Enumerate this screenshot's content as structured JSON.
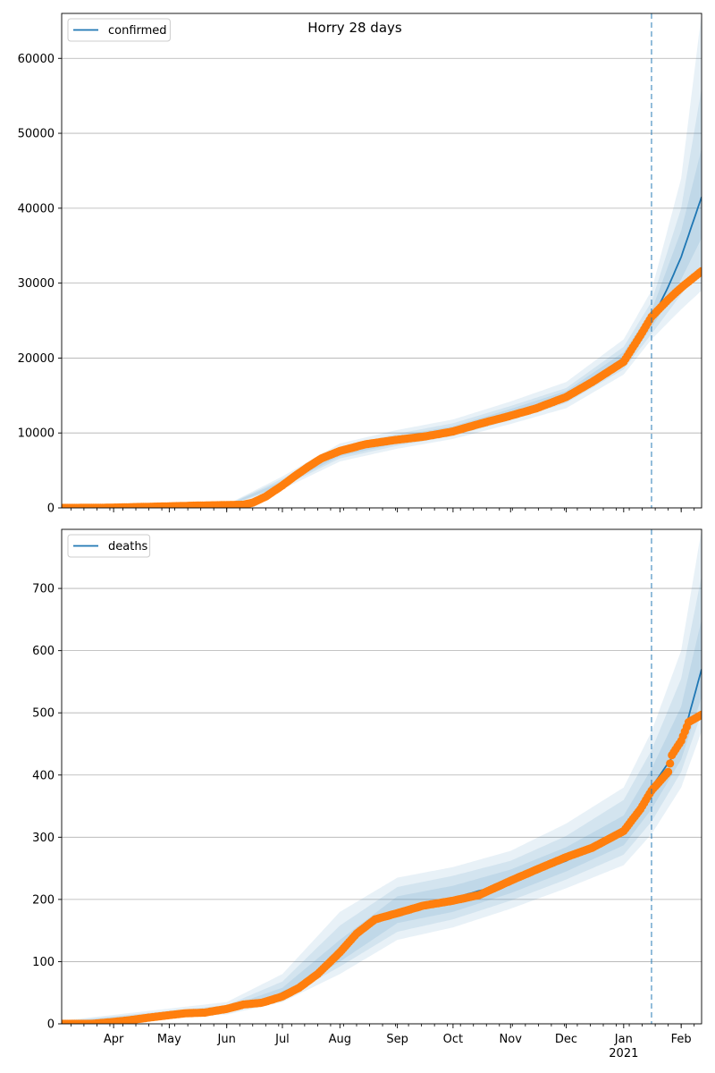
{
  "figure": {
    "title": "Horry 28 days"
  },
  "chart_data": [
    {
      "type": "line",
      "title": "Horry 28 days",
      "legend": {
        "position": "top-left",
        "entries": [
          "confirmed"
        ]
      },
      "series_name": "confirmed",
      "grid": "y",
      "ylim": [
        0,
        66000
      ],
      "yticks": [
        0,
        10000,
        20000,
        30000,
        40000,
        50000,
        60000
      ],
      "xlim": [
        "2020-03-04",
        "2021-02-12"
      ],
      "vline_date": "2021-01-16",
      "colors": {
        "model": "#1f77b4",
        "observed": "#ff7f0e",
        "band": "#1f77b4",
        "grid": "#b0b0b0"
      },
      "observed": [
        [
          "2020-03-04",
          0
        ],
        [
          "2020-03-20",
          10
        ],
        [
          "2020-04-01",
          40
        ],
        [
          "2020-04-15",
          120
        ],
        [
          "2020-05-01",
          210
        ],
        [
          "2020-05-15",
          300
        ],
        [
          "2020-06-01",
          380
        ],
        [
          "2020-06-10",
          420
        ],
        [
          "2020-06-15",
          700
        ],
        [
          "2020-06-22",
          1500
        ],
        [
          "2020-07-01",
          3000
        ],
        [
          "2020-07-08",
          4300
        ],
        [
          "2020-07-15",
          5500
        ],
        [
          "2020-07-22",
          6600
        ],
        [
          "2020-08-01",
          7600
        ],
        [
          "2020-08-15",
          8500
        ],
        [
          "2020-09-01",
          9100
        ],
        [
          "2020-09-15",
          9500
        ],
        [
          "2020-10-01",
          10200
        ],
        [
          "2020-10-15",
          11200
        ],
        [
          "2020-11-01",
          12300
        ],
        [
          "2020-11-15",
          13300
        ],
        [
          "2020-12-01",
          14800
        ],
        [
          "2020-12-15",
          16800
        ],
        [
          "2021-01-01",
          19500
        ],
        [
          "2021-01-10",
          23000
        ],
        [
          "2021-01-16",
          25500
        ],
        [
          "2021-01-25",
          27800
        ],
        [
          "2021-02-01",
          29400
        ],
        [
          "2021-02-12",
          31600
        ]
      ],
      "model": [
        [
          "2020-03-04",
          0
        ],
        [
          "2020-05-01",
          150
        ],
        [
          "2020-06-01",
          300
        ],
        [
          "2020-06-15",
          900
        ],
        [
          "2020-07-01",
          3300
        ],
        [
          "2020-07-15",
          5400
        ],
        [
          "2020-08-01",
          7300
        ],
        [
          "2020-08-15",
          8300
        ],
        [
          "2020-09-01",
          9100
        ],
        [
          "2020-10-01",
          10400
        ],
        [
          "2020-11-01",
          12600
        ],
        [
          "2020-12-01",
          15000
        ],
        [
          "2021-01-01",
          20000
        ],
        [
          "2021-01-16",
          25000
        ],
        [
          "2021-01-25",
          29500
        ],
        [
          "2021-02-01",
          33500
        ],
        [
          "2021-02-12",
          41500
        ]
      ],
      "bands": [
        {
          "dates": [
            "2020-03-04",
            "2020-06-01",
            "2020-07-01",
            "2020-08-01",
            "2020-09-01",
            "2020-10-01",
            "2020-11-01",
            "2020-12-01",
            "2021-01-01",
            "2021-01-16",
            "2021-02-01",
            "2021-02-12"
          ],
          "low": [
            0,
            200,
            2500,
            6200,
            7900,
            9200,
            11200,
            13300,
            17800,
            22500,
            26500,
            29000
          ],
          "high": [
            60,
            450,
            4200,
            8600,
            10400,
            11800,
            14200,
            16800,
            22500,
            29000,
            44000,
            66000
          ]
        },
        {
          "dates": [
            "2020-03-04",
            "2020-06-01",
            "2020-07-01",
            "2020-08-01",
            "2020-09-01",
            "2020-10-01",
            "2020-11-01",
            "2020-12-01",
            "2021-01-01",
            "2021-01-16",
            "2021-02-01",
            "2021-02-12"
          ],
          "low": [
            0,
            240,
            2800,
            6600,
            8300,
            9600,
            11700,
            14000,
            18500,
            23200,
            28500,
            32000
          ],
          "high": [
            40,
            400,
            3900,
            8100,
            9900,
            11300,
            13600,
            16000,
            21500,
            27500,
            40000,
            56000
          ]
        },
        {
          "dates": [
            "2020-03-04",
            "2020-06-01",
            "2020-07-01",
            "2020-08-01",
            "2020-09-01",
            "2020-10-01",
            "2020-11-01",
            "2020-12-01",
            "2021-01-01",
            "2021-01-16",
            "2021-02-01",
            "2021-02-12"
          ],
          "low": [
            0,
            260,
            3000,
            6900,
            8600,
            9900,
            12100,
            14500,
            19200,
            24000,
            30500,
            36000
          ],
          "high": [
            25,
            360,
            3600,
            7700,
            9600,
            10900,
            13200,
            15600,
            20800,
            26300,
            37000,
            48000
          ]
        }
      ]
    },
    {
      "type": "line",
      "legend": {
        "position": "top-left",
        "entries": [
          "deaths"
        ]
      },
      "series_name": "deaths",
      "grid": "y",
      "ylim": [
        0,
        795
      ],
      "yticks": [
        0,
        100,
        200,
        300,
        400,
        500,
        600,
        700
      ],
      "xlim": [
        "2020-03-04",
        "2021-02-12"
      ],
      "vline_date": "2021-01-16",
      "x_month_labels": [
        "Apr",
        "May",
        "Jun",
        "Jul",
        "Aug",
        "Sep",
        "Oct",
        "Nov",
        "Dec",
        "Jan",
        "Feb"
      ],
      "x_month_dates": [
        "2020-04-01",
        "2020-05-01",
        "2020-06-01",
        "2020-07-01",
        "2020-08-01",
        "2020-09-01",
        "2020-10-01",
        "2020-11-01",
        "2020-12-01",
        "2021-01-01",
        "2021-02-01"
      ],
      "x_year_label": "2021",
      "colors": {
        "model": "#1f77b4",
        "observed": "#ff7f0e",
        "band": "#1f77b4",
        "grid": "#b0b0b0"
      },
      "observed": [
        [
          "2020-03-04",
          0
        ],
        [
          "2020-03-20",
          0
        ],
        [
          "2020-04-01",
          3
        ],
        [
          "2020-04-10",
          6
        ],
        [
          "2020-04-20",
          10
        ],
        [
          "2020-05-01",
          14
        ],
        [
          "2020-05-10",
          17
        ],
        [
          "2020-05-20",
          18
        ],
        [
          "2020-06-01",
          24
        ],
        [
          "2020-06-10",
          31
        ],
        [
          "2020-06-20",
          34
        ],
        [
          "2020-07-01",
          44
        ],
        [
          "2020-07-10",
          58
        ],
        [
          "2020-07-20",
          80
        ],
        [
          "2020-08-01",
          115
        ],
        [
          "2020-08-10",
          145
        ],
        [
          "2020-08-20",
          168
        ],
        [
          "2020-09-01",
          178
        ],
        [
          "2020-09-15",
          190
        ],
        [
          "2020-10-01",
          198
        ],
        [
          "2020-10-15",
          207
        ],
        [
          "2020-11-01",
          230
        ],
        [
          "2020-11-15",
          248
        ],
        [
          "2020-12-01",
          268
        ],
        [
          "2020-12-15",
          283
        ],
        [
          "2021-01-01",
          310
        ],
        [
          "2021-01-10",
          345
        ],
        [
          "2021-01-16",
          375
        ],
        [
          "2021-01-25",
          405
        ],
        [
          "2021-01-27",
          432
        ],
        [
          "2021-02-01",
          455
        ],
        [
          "2021-02-05",
          485
        ],
        [
          "2021-02-12",
          497
        ]
      ],
      "model": [
        [
          "2020-03-04",
          0
        ],
        [
          "2020-04-01",
          3
        ],
        [
          "2020-05-01",
          12
        ],
        [
          "2020-06-01",
          24
        ],
        [
          "2020-06-20",
          33
        ],
        [
          "2020-07-01",
          50
        ],
        [
          "2020-07-15",
          70
        ],
        [
          "2020-08-01",
          110
        ],
        [
          "2020-08-15",
          155
        ],
        [
          "2020-09-01",
          183
        ],
        [
          "2020-10-01",
          202
        ],
        [
          "2020-11-01",
          228
        ],
        [
          "2020-12-01",
          262
        ],
        [
          "2021-01-01",
          310
        ],
        [
          "2021-01-16",
          380
        ],
        [
          "2021-02-01",
          450
        ],
        [
          "2021-02-12",
          570
        ]
      ],
      "bands": [
        {
          "dates": [
            "2020-03-04",
            "2020-06-01",
            "2020-07-01",
            "2020-08-01",
            "2020-09-01",
            "2020-10-01",
            "2020-11-01",
            "2020-12-01",
            "2021-01-01",
            "2021-01-16",
            "2021-02-01",
            "2021-02-12"
          ],
          "low": [
            0,
            15,
            35,
            80,
            135,
            155,
            185,
            218,
            255,
            305,
            380,
            470
          ],
          "high": [
            5,
            35,
            80,
            180,
            235,
            252,
            278,
            322,
            380,
            470,
            600,
            795
          ]
        },
        {
          "dates": [
            "2020-03-04",
            "2020-06-01",
            "2020-07-01",
            "2020-08-01",
            "2020-09-01",
            "2020-10-01",
            "2020-11-01",
            "2020-12-01",
            "2021-01-01",
            "2021-01-16",
            "2021-02-01",
            "2021-02-12"
          ],
          "low": [
            0,
            18,
            40,
            92,
            148,
            168,
            198,
            232,
            272,
            325,
            405,
            500
          ],
          "high": [
            4,
            30,
            68,
            158,
            220,
            238,
            262,
            302,
            360,
            440,
            555,
            720
          ]
        },
        {
          "dates": [
            "2020-03-04",
            "2020-06-01",
            "2020-07-01",
            "2020-08-01",
            "2020-09-01",
            "2020-10-01",
            "2020-11-01",
            "2020-12-01",
            "2021-01-01",
            "2021-01-16",
            "2021-02-01",
            "2021-02-12"
          ],
          "low": [
            0,
            20,
            44,
            100,
            162,
            180,
            210,
            245,
            287,
            345,
            425,
            525
          ],
          "high": [
            3,
            27,
            58,
            135,
            205,
            222,
            248,
            284,
            335,
            410,
            510,
            650
          ]
        }
      ]
    }
  ]
}
